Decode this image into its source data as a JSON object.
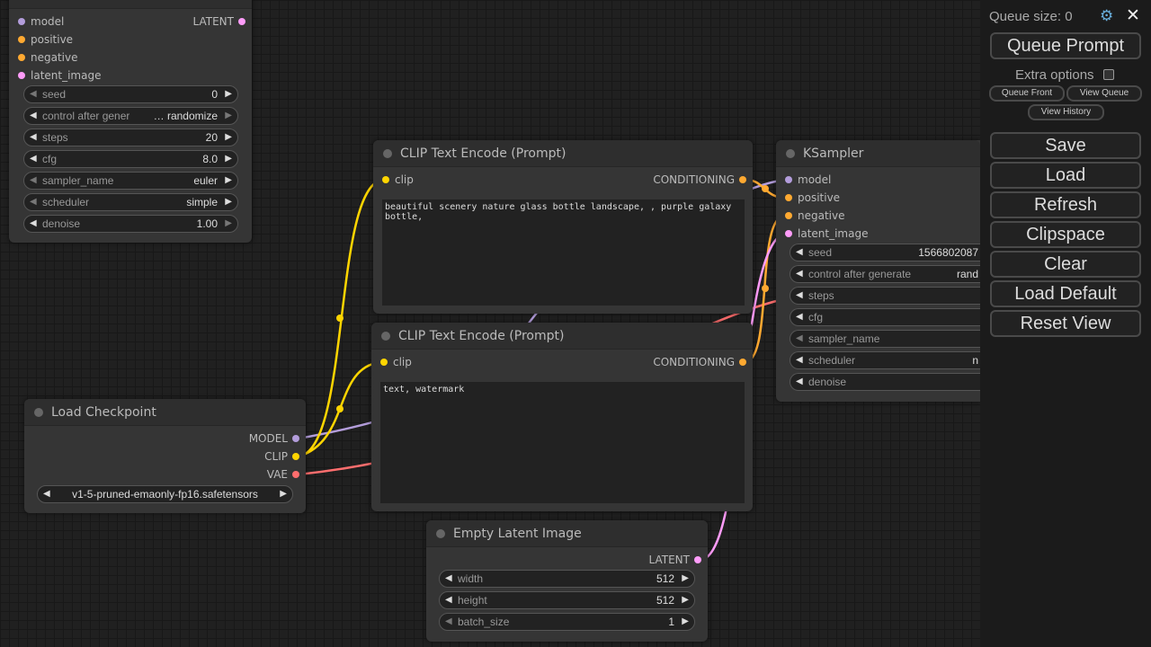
{
  "colors": {
    "model": "#b39ddb",
    "clip": "#ffd500",
    "conditioning": "#ffa931",
    "latent": "#ff9cf9",
    "vae": "#ff6e6e"
  },
  "ksampler_left": {
    "inputs": [
      "model",
      "positive",
      "negative",
      "latent_image"
    ],
    "output": "LATENT",
    "widgets": [
      {
        "label": "seed",
        "value": "0"
      },
      {
        "label": "control after gener",
        "value": "… randomize"
      },
      {
        "label": "steps",
        "value": "20"
      },
      {
        "label": "cfg",
        "value": "8.0"
      },
      {
        "label": "sampler_name",
        "value": "euler"
      },
      {
        "label": "scheduler",
        "value": "simple"
      },
      {
        "label": "denoise",
        "value": "1.00"
      }
    ]
  },
  "clip_pos": {
    "title": "CLIP Text Encode (Prompt)",
    "input": "clip",
    "output": "CONDITIONING",
    "text": "beautiful scenery nature glass bottle landscape, , purple galaxy bottle,"
  },
  "clip_neg": {
    "title": "CLIP Text Encode (Prompt)",
    "input": "clip",
    "output": "CONDITIONING",
    "text": "text, watermark"
  },
  "checkpoint": {
    "title": "Load Checkpoint",
    "outputs": [
      "MODEL",
      "CLIP",
      "VAE"
    ],
    "ckpt_name": "v1-5-pruned-emaonly-fp16.safetensors"
  },
  "latent": {
    "title": "Empty Latent Image",
    "output": "LATENT",
    "widgets": [
      {
        "label": "width",
        "value": "512"
      },
      {
        "label": "height",
        "value": "512"
      },
      {
        "label": "batch_size",
        "value": "1"
      }
    ]
  },
  "ksampler": {
    "title": "KSampler",
    "inputs": [
      "model",
      "positive",
      "negative",
      "latent_image"
    ],
    "widgets": [
      {
        "label": "seed",
        "value": "1566802087"
      },
      {
        "label": "control after generate",
        "value": "rand"
      },
      {
        "label": "steps",
        "value": ""
      },
      {
        "label": "cfg",
        "value": ""
      },
      {
        "label": "sampler_name",
        "value": ""
      },
      {
        "label": "scheduler",
        "value": "n"
      },
      {
        "label": "denoise",
        "value": ""
      }
    ]
  },
  "panel": {
    "queue_size": "Queue size: 0",
    "queue_prompt": "Queue Prompt",
    "extra_options": "Extra options",
    "queue_front": "Queue Front",
    "view_queue": "View Queue",
    "view_history": "View History",
    "buttons": [
      "Save",
      "Load",
      "Refresh",
      "Clipspace",
      "Clear",
      "Load Default",
      "Reset View"
    ]
  }
}
